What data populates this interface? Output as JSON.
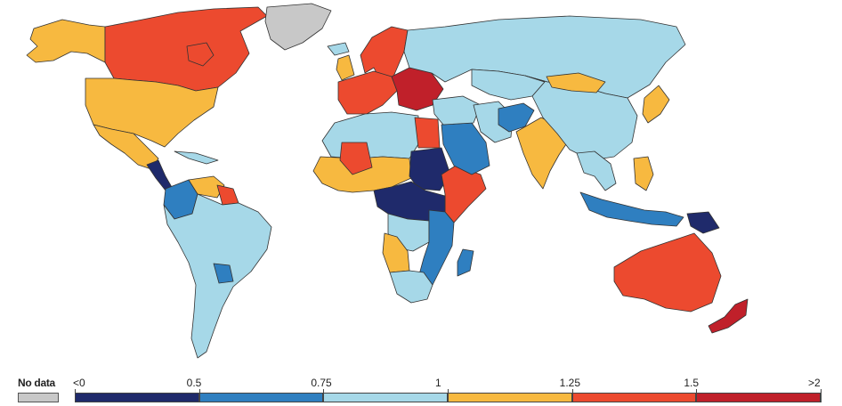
{
  "colors": {
    "no_data": "#c8c8c8",
    "lt_0": "#1f2a6b",
    "b0_05": "#2f7fc0",
    "b05_075": "#a6d8e8",
    "b075_1": "#f7b940",
    "b1_125": "#ec4a2f",
    "b125_15": "#c0202a"
  },
  "legend": {
    "no_data_label": "No data",
    "ticks": [
      "<0",
      "0.5",
      "0.75",
      "1",
      "1.25",
      "1.5",
      ">2"
    ],
    "bins": [
      {
        "color_key": "lt_0"
      },
      {
        "color_key": "b0_05"
      },
      {
        "color_key": "b05_075"
      },
      {
        "color_key": "b075_1"
      },
      {
        "color_key": "b1_125"
      },
      {
        "color_key": "b125_15"
      }
    ]
  },
  "regions": [
    {
      "name": "alaska",
      "color_key": "b075_1"
    },
    {
      "name": "canada",
      "color_key": "b1_125"
    },
    {
      "name": "greenland",
      "color_key": "no_data"
    },
    {
      "name": "usa",
      "color_key": "b075_1"
    },
    {
      "name": "mexico",
      "color_key": "b075_1"
    },
    {
      "name": "central-america",
      "color_key": "lt_0"
    },
    {
      "name": "cuba",
      "color_key": "b05_075"
    },
    {
      "name": "colombia",
      "color_key": "b0_05"
    },
    {
      "name": "venezuela",
      "color_key": "b075_1"
    },
    {
      "name": "guianas",
      "color_key": "b1_125"
    },
    {
      "name": "south-america",
      "color_key": "b05_075"
    },
    {
      "name": "paraguay",
      "color_key": "b0_05"
    },
    {
      "name": "iceland",
      "color_key": "b05_075"
    },
    {
      "name": "scandinavia",
      "color_key": "b1_125"
    },
    {
      "name": "uk",
      "color_key": "b075_1"
    },
    {
      "name": "western-europe",
      "color_key": "b1_125"
    },
    {
      "name": "eastern-europe",
      "color_key": "b125_15"
    },
    {
      "name": "russia",
      "color_key": "b05_075"
    },
    {
      "name": "north-africa",
      "color_key": "b05_075"
    },
    {
      "name": "west-africa",
      "color_key": "b075_1"
    },
    {
      "name": "mali-niger",
      "color_key": "b1_125"
    },
    {
      "name": "egypt",
      "color_key": "b1_125"
    },
    {
      "name": "sudan",
      "color_key": "lt_0"
    },
    {
      "name": "horn-of-africa",
      "color_key": "b1_125"
    },
    {
      "name": "central-africa",
      "color_key": "lt_0"
    },
    {
      "name": "congo",
      "color_key": "b05_075"
    },
    {
      "name": "angola",
      "color_key": "b075_1"
    },
    {
      "name": "east-africa",
      "color_key": "b0_05"
    },
    {
      "name": "southern-africa",
      "color_key": "b05_075"
    },
    {
      "name": "madagascar",
      "color_key": "b0_05"
    },
    {
      "name": "saudi-arabia",
      "color_key": "b0_05"
    },
    {
      "name": "middle-east",
      "color_key": "b05_075"
    },
    {
      "name": "iran",
      "color_key": "b05_075"
    },
    {
      "name": "central-asia",
      "color_key": "b05_075"
    },
    {
      "name": "afghanistan",
      "color_key": "b0_05"
    },
    {
      "name": "india",
      "color_key": "b075_1"
    },
    {
      "name": "china",
      "color_key": "b05_075"
    },
    {
      "name": "mongolia",
      "color_key": "b075_1"
    },
    {
      "name": "japan",
      "color_key": "b075_1"
    },
    {
      "name": "southeast-asia",
      "color_key": "b05_075"
    },
    {
      "name": "philippines",
      "color_key": "b075_1"
    },
    {
      "name": "indonesia",
      "color_key": "b0_05"
    },
    {
      "name": "papua-new-guinea",
      "color_key": "lt_0"
    },
    {
      "name": "australia",
      "color_key": "b1_125"
    },
    {
      "name": "new-zealand",
      "color_key": "b125_15"
    }
  ]
}
